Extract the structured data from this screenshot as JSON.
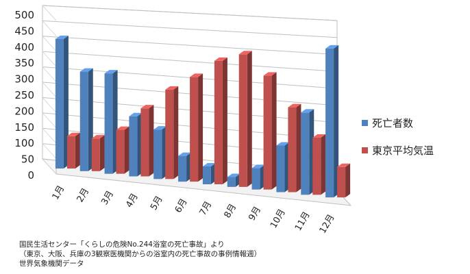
{
  "chart_data": {
    "type": "bar",
    "categories": [
      "1月",
      "2月",
      "3月",
      "4月",
      "5月",
      "6月",
      "7月",
      "8月",
      "9月",
      "10月",
      "11月",
      "12月"
    ],
    "series": [
      {
        "name": "死亡者数",
        "color": "#4f81bd",
        "values": [
          420,
          320,
          320,
          190,
          155,
          80,
          55,
          30,
          65,
          140,
          245,
          440
        ]
      },
      {
        "name": "東京平均気温",
        "color": "#c0504d",
        "values": [
          105,
          105,
          140,
          215,
          280,
          325,
          380,
          405,
          345,
          255,
          170,
          90
        ]
      }
    ],
    "yticks": [
      "0",
      "50",
      "100",
      "150",
      "200",
      "250",
      "300",
      "350",
      "400",
      "450",
      "500"
    ],
    "ylim": [
      0,
      500
    ],
    "grid": true,
    "legend": "right"
  },
  "source_lines": [
    "国民生活センター「くらしの危険No.244浴室の死亡事故」より",
    "（東京、大阪、兵庫の3観察医機関からの浴室内の死亡事故の事例情報週）",
    "世界気象機関データ"
  ]
}
